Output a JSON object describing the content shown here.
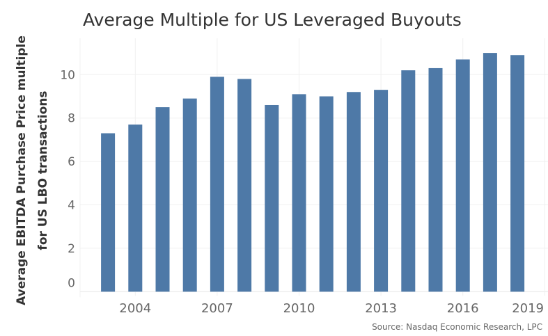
{
  "chart_data": {
    "type": "bar",
    "title": "Average Multiple for US Leveraged Buyouts",
    "ylabel": [
      "Average EBITDA Purchase Price multiple",
      "for US LBO transactions"
    ],
    "xlabel": "",
    "categories": [
      2003,
      2004,
      2005,
      2006,
      2007,
      2008,
      2009,
      2010,
      2011,
      2012,
      2013,
      2014,
      2015,
      2016,
      2017,
      2018
    ],
    "values": [
      7.3,
      7.7,
      8.5,
      8.9,
      9.9,
      9.8,
      8.6,
      9.1,
      9.0,
      9.2,
      9.3,
      10.2,
      10.3,
      10.7,
      11.0,
      10.9
    ],
    "x_ticks": [
      "2004",
      "2007",
      "2010",
      "2013",
      "2016",
      "2019"
    ],
    "y_ticks": [
      "0",
      "2",
      "4",
      "6",
      "8",
      "10"
    ],
    "ylim": [
      0,
      11.5
    ],
    "grid": true,
    "bar_color": "#4e79a7",
    "source": "Source: Nasdaq Economic Research, LPC"
  }
}
